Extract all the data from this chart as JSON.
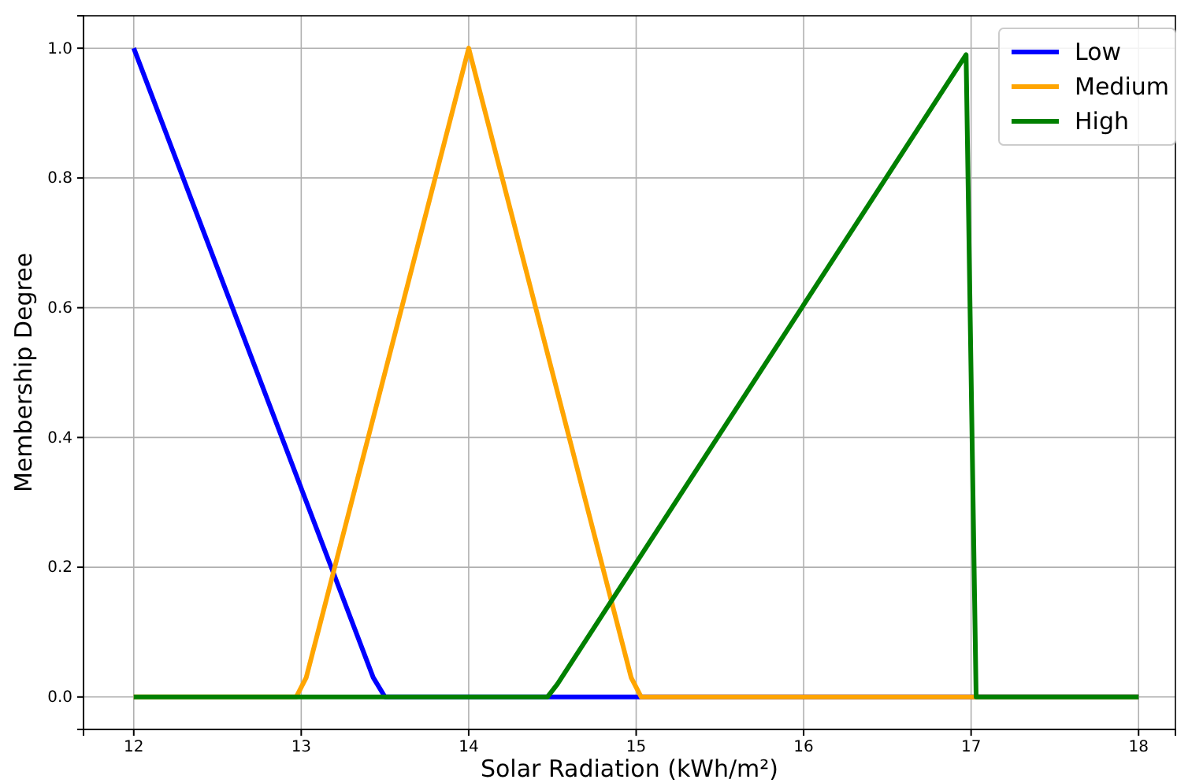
{
  "chart_data": {
    "type": "line",
    "xlabel": "Solar Radiation (kWh/m²)",
    "ylabel": "Membership Degree",
    "xlim": [
      11.7,
      18.22
    ],
    "ylim": [
      -0.05,
      1.05
    ],
    "xticks": [
      12,
      13,
      14,
      15,
      16,
      17,
      18
    ],
    "yticks": [
      {
        "value": 0,
        "label": "0.0"
      },
      {
        "value": 0.2,
        "label": "0.2"
      },
      {
        "value": 0.4,
        "label": "0.4"
      },
      {
        "value": 0.6,
        "label": "0.6"
      },
      {
        "value": 0.8,
        "label": "0.8"
      },
      {
        "value": 1,
        "label": "1.0"
      }
    ],
    "grid": true,
    "legend": "top right",
    "marker": "none",
    "line_style": "solid",
    "series": [
      {
        "name": "Low",
        "color": "#0000ff",
        "x": [
          12,
          13.43,
          13.5,
          18
        ],
        "values": [
          1,
          0.03,
          0,
          0
        ]
      },
      {
        "name": "Medium",
        "color": "#ffa500",
        "x": [
          12,
          12.97,
          13.03,
          14,
          14.97,
          15.03,
          18
        ],
        "values": [
          0,
          0,
          0.03,
          1,
          0.03,
          0,
          0
        ]
      },
      {
        "name": "High",
        "color": "#008000",
        "x": [
          12,
          14.47,
          14.53,
          16.97,
          17.03,
          18
        ],
        "values": [
          0,
          0,
          0.02,
          0.99,
          0,
          0
        ]
      }
    ]
  }
}
